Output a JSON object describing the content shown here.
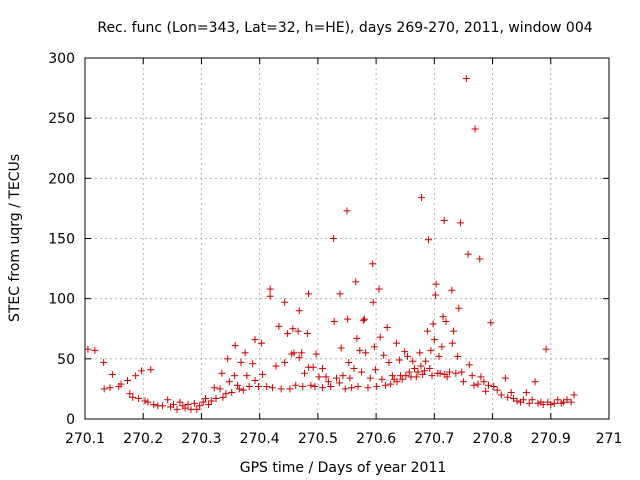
{
  "chart_data": {
    "type": "scatter",
    "title": "Rec. func (Lon=343, Lat=32, h=HE), days 269-270, 2011, window 004",
    "xlabel": "GPS time / Days of year 2011",
    "ylabel": "STEC from uqrg / TECUs",
    "xlim": [
      270.1,
      271.0
    ],
    "ylim": [
      0,
      300
    ],
    "xticks": [
      270.1,
      270.2,
      270.3,
      270.4,
      270.5,
      270.6,
      270.7,
      270.8,
      270.9,
      271.0
    ],
    "xtick_labels": [
      "270.1",
      "270.2",
      "270.3",
      "270.4",
      "270.5",
      "270.6",
      "270.7",
      "270.8",
      "270.9",
      "271"
    ],
    "yticks": [
      0,
      50,
      100,
      150,
      200,
      250,
      300
    ],
    "ytick_labels": [
      "0",
      "50",
      "100",
      "150",
      "200",
      "250",
      "300"
    ],
    "grid": true,
    "legend": "none",
    "marker": "+",
    "color": "#cc0000",
    "series": [
      {
        "name": "STEC",
        "points": [
          [
            270.105,
            58
          ],
          [
            270.117,
            57
          ],
          [
            270.132,
            47
          ],
          [
            270.133,
            25
          ],
          [
            270.143,
            26
          ],
          [
            270.147,
            37
          ],
          [
            270.158,
            27
          ],
          [
            270.162,
            29
          ],
          [
            270.173,
            32
          ],
          [
            270.177,
            21
          ],
          [
            270.182,
            18
          ],
          [
            270.187,
            36
          ],
          [
            270.192,
            17
          ],
          [
            270.197,
            40
          ],
          [
            270.203,
            15
          ],
          [
            270.208,
            14
          ],
          [
            270.213,
            41
          ],
          [
            270.218,
            12
          ],
          [
            270.225,
            11
          ],
          [
            270.233,
            11
          ],
          [
            270.242,
            16
          ],
          [
            270.247,
            10
          ],
          [
            270.252,
            12
          ],
          [
            270.258,
            8
          ],
          [
            270.263,
            14
          ],
          [
            270.268,
            11
          ],
          [
            270.272,
            9
          ],
          [
            270.277,
            12
          ],
          [
            270.282,
            8
          ],
          [
            270.288,
            13
          ],
          [
            270.292,
            8
          ],
          [
            270.297,
            11
          ],
          [
            270.303,
            14
          ],
          [
            270.307,
            17
          ],
          [
            270.312,
            12
          ],
          [
            270.317,
            15
          ],
          [
            270.322,
            26
          ],
          [
            270.325,
            17
          ],
          [
            270.332,
            25
          ],
          [
            270.335,
            38
          ],
          [
            270.337,
            18
          ],
          [
            270.342,
            21
          ],
          [
            270.345,
            50
          ],
          [
            270.348,
            31
          ],
          [
            270.352,
            22
          ],
          [
            270.357,
            36
          ],
          [
            270.358,
            61
          ],
          [
            270.362,
            28
          ],
          [
            270.365,
            25
          ],
          [
            270.368,
            47
          ],
          [
            270.372,
            24
          ],
          [
            270.375,
            55
          ],
          [
            270.378,
            36
          ],
          [
            270.382,
            27
          ],
          [
            270.388,
            46
          ],
          [
            270.392,
            32
          ],
          [
            270.392,
            66
          ],
          [
            270.398,
            27
          ],
          [
            270.403,
            63
          ],
          [
            270.405,
            37
          ],
          [
            270.412,
            27
          ],
          [
            270.418,
            108
          ],
          [
            270.418,
            102
          ],
          [
            270.422,
            26
          ],
          [
            270.428,
            44
          ],
          [
            270.433,
            77
          ],
          [
            270.437,
            25
          ],
          [
            270.443,
            97
          ],
          [
            270.443,
            47
          ],
          [
            270.448,
            71
          ],
          [
            270.452,
            25
          ],
          [
            270.455,
            54
          ],
          [
            270.457,
            75
          ],
          [
            270.459,
            55
          ],
          [
            270.462,
            28
          ],
          [
            270.466,
            73
          ],
          [
            270.468,
            90
          ],
          [
            270.468,
            51
          ],
          [
            270.472,
            55
          ],
          [
            270.474,
            27
          ],
          [
            270.477,
            38
          ],
          [
            270.482,
            71
          ],
          [
            270.484,
            104
          ],
          [
            270.484,
            43
          ],
          [
            270.488,
            28
          ],
          [
            270.492,
            43
          ],
          [
            270.495,
            27
          ],
          [
            270.497,
            54
          ],
          [
            270.502,
            35
          ],
          [
            270.508,
            42
          ],
          [
            270.508,
            26
          ],
          [
            270.514,
            35
          ],
          [
            270.518,
            31
          ],
          [
            270.522,
            27
          ],
          [
            270.527,
            150
          ],
          [
            270.528,
            81
          ],
          [
            270.532,
            34
          ],
          [
            270.537,
            30
          ],
          [
            270.538,
            104
          ],
          [
            270.54,
            59
          ],
          [
            270.543,
            36
          ],
          [
            270.547,
            25
          ],
          [
            270.55,
            173
          ],
          [
            270.551,
            83
          ],
          [
            270.553,
            47
          ],
          [
            270.555,
            34
          ],
          [
            270.558,
            26
          ],
          [
            270.562,
            42
          ],
          [
            270.565,
            114
          ],
          [
            270.567,
            67
          ],
          [
            270.569,
            27
          ],
          [
            270.572,
            57
          ],
          [
            270.575,
            39
          ],
          [
            270.578,
            82
          ],
          [
            270.58,
            83
          ],
          [
            270.582,
            55
          ],
          [
            270.586,
            26
          ],
          [
            270.59,
            34
          ],
          [
            270.594,
            129
          ],
          [
            270.595,
            97
          ],
          [
            270.597,
            60
          ],
          [
            270.599,
            41
          ],
          [
            270.601,
            27
          ],
          [
            270.605,
            108
          ],
          [
            270.607,
            68
          ],
          [
            270.61,
            33
          ],
          [
            270.613,
            53
          ],
          [
            270.616,
            28
          ],
          [
            270.619,
            76
          ],
          [
            270.622,
            47
          ],
          [
            270.625,
            29
          ],
          [
            270.628,
            36
          ],
          [
            270.631,
            33
          ],
          [
            270.635,
            63
          ],
          [
            270.636,
            31
          ],
          [
            270.64,
            49
          ],
          [
            270.642,
            36
          ],
          [
            270.645,
            33
          ],
          [
            270.649,
            56
          ],
          [
            270.651,
            36
          ],
          [
            270.654,
            52
          ],
          [
            270.657,
            39
          ],
          [
            270.66,
            35
          ],
          [
            270.663,
            48
          ],
          [
            270.666,
            42
          ],
          [
            270.669,
            35
          ],
          [
            270.672,
            39
          ],
          [
            270.675,
            55
          ],
          [
            270.677,
            44
          ],
          [
            270.678,
            184
          ],
          [
            270.68,
            37
          ],
          [
            270.683,
            40
          ],
          [
            270.685,
            48
          ],
          [
            270.688,
            73
          ],
          [
            270.69,
            149
          ],
          [
            270.692,
            42
          ],
          [
            270.694,
            57
          ],
          [
            270.696,
            36
          ],
          [
            270.698,
            79
          ],
          [
            270.7,
            66
          ],
          [
            270.702,
            103
          ],
          [
            270.703,
            112
          ],
          [
            270.706,
            38
          ],
          [
            270.708,
            52
          ],
          [
            270.71,
            38
          ],
          [
            270.713,
            60
          ],
          [
            270.715,
            85
          ],
          [
            270.717,
            165
          ],
          [
            270.718,
            37
          ],
          [
            270.72,
            81
          ],
          [
            270.722,
            35
          ],
          [
            270.726,
            39
          ],
          [
            270.73,
            107
          ],
          [
            270.731,
            63
          ],
          [
            270.733,
            73
          ],
          [
            270.737,
            38
          ],
          [
            270.74,
            52
          ],
          [
            270.742,
            92
          ],
          [
            270.745,
            163
          ],
          [
            270.747,
            39
          ],
          [
            270.75,
            31
          ],
          [
            270.755,
            283
          ],
          [
            270.758,
            137
          ],
          [
            270.76,
            45
          ],
          [
            270.765,
            36
          ],
          [
            270.768,
            28
          ],
          [
            270.77,
            241
          ],
          [
            270.775,
            29
          ],
          [
            270.778,
            133
          ],
          [
            270.78,
            35
          ],
          [
            270.785,
            31
          ],
          [
            270.788,
            23
          ],
          [
            270.793,
            28
          ],
          [
            270.797,
            80
          ],
          [
            270.802,
            27
          ],
          [
            270.808,
            24
          ],
          [
            270.815,
            20
          ],
          [
            270.822,
            34
          ],
          [
            270.826,
            18
          ],
          [
            270.832,
            22
          ],
          [
            270.836,
            17
          ],
          [
            270.842,
            15
          ],
          [
            270.848,
            14
          ],
          [
            270.853,
            16
          ],
          [
            270.858,
            22
          ],
          [
            270.863,
            13
          ],
          [
            270.868,
            16
          ],
          [
            270.873,
            31
          ],
          [
            270.878,
            13
          ],
          [
            270.883,
            14
          ],
          [
            270.887,
            12
          ],
          [
            270.892,
            58
          ],
          [
            270.895,
            14
          ],
          [
            270.9,
            12
          ],
          [
            270.906,
            13
          ],
          [
            270.912,
            16
          ],
          [
            270.918,
            13
          ],
          [
            270.922,
            14
          ],
          [
            270.928,
            16
          ],
          [
            270.935,
            14
          ],
          [
            270.94,
            20
          ]
        ]
      }
    ]
  }
}
